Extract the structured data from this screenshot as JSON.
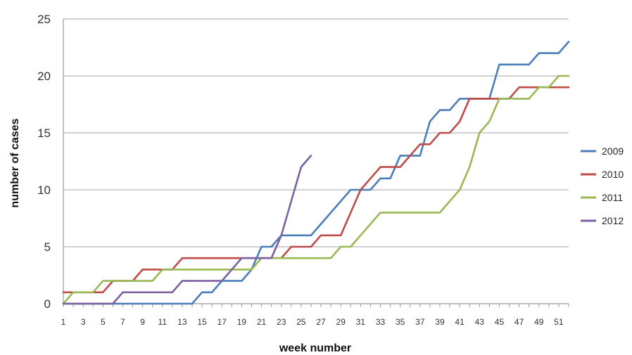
{
  "chart_data": {
    "type": "line",
    "title": "",
    "xlabel": "week number",
    "ylabel": "number of cases",
    "ylim": [
      0,
      25
    ],
    "yticks": [
      0,
      5,
      10,
      15,
      20,
      25
    ],
    "xlim": [
      1,
      52
    ],
    "xticks": [
      1,
      3,
      5,
      7,
      9,
      11,
      13,
      15,
      17,
      19,
      21,
      23,
      25,
      27,
      29,
      31,
      33,
      35,
      37,
      39,
      41,
      43,
      45,
      47,
      49,
      51
    ],
    "grid": "horizontal",
    "legend_position": "right",
    "x": [
      1,
      2,
      3,
      4,
      5,
      6,
      7,
      8,
      9,
      10,
      11,
      12,
      13,
      14,
      15,
      16,
      17,
      18,
      19,
      20,
      21,
      22,
      23,
      24,
      25,
      26,
      27,
      28,
      29,
      30,
      31,
      32,
      33,
      34,
      35,
      36,
      37,
      38,
      39,
      40,
      41,
      42,
      43,
      44,
      45,
      46,
      47,
      48,
      49,
      50,
      51,
      52
    ],
    "series": [
      {
        "name": "2009",
        "color": "#4a7ebb",
        "values": [
          0,
          0,
          0,
          0,
          0,
          0,
          0,
          0,
          0,
          0,
          0,
          0,
          0,
          0,
          1,
          1,
          2,
          2,
          2,
          3,
          5,
          5,
          6,
          6,
          6,
          6,
          7,
          8,
          9,
          10,
          10,
          10,
          11,
          11,
          13,
          13,
          13,
          16,
          17,
          17,
          18,
          18,
          18,
          18,
          21,
          21,
          21,
          21,
          22,
          22,
          22,
          23
        ]
      },
      {
        "name": "2010",
        "color": "#be4b48",
        "values": [
          1,
          1,
          1,
          1,
          1,
          2,
          2,
          2,
          3,
          3,
          3,
          3,
          4,
          4,
          4,
          4,
          4,
          4,
          4,
          4,
          4,
          4,
          4,
          5,
          5,
          5,
          6,
          6,
          6,
          8,
          10,
          11,
          12,
          12,
          12,
          13,
          14,
          14,
          15,
          15,
          16,
          18,
          18,
          18,
          18,
          18,
          19,
          19,
          19,
          19,
          19,
          19
        ]
      },
      {
        "name": "2011",
        "color": "#98b954",
        "values": [
          0,
          1,
          1,
          1,
          2,
          2,
          2,
          2,
          2,
          2,
          3,
          3,
          3,
          3,
          3,
          3,
          3,
          3,
          3,
          3,
          4,
          4,
          4,
          4,
          4,
          4,
          4,
          4,
          5,
          5,
          6,
          7,
          8,
          8,
          8,
          8,
          8,
          8,
          8,
          9,
          10,
          12,
          15,
          16,
          18,
          18,
          18,
          18,
          19,
          19,
          20,
          20
        ]
      },
      {
        "name": "2012",
        "color": "#7d60a0",
        "values": [
          0,
          0,
          0,
          0,
          0,
          0,
          1,
          1,
          1,
          1,
          1,
          1,
          2,
          2,
          2,
          2,
          2,
          3,
          4,
          4,
          4,
          4,
          6,
          9,
          12,
          13,
          null,
          null,
          null,
          null,
          null,
          null,
          null,
          null,
          null,
          null,
          null,
          null,
          null,
          null,
          null,
          null,
          null,
          null,
          null,
          null,
          null,
          null,
          null,
          null,
          null,
          null
        ]
      }
    ]
  }
}
